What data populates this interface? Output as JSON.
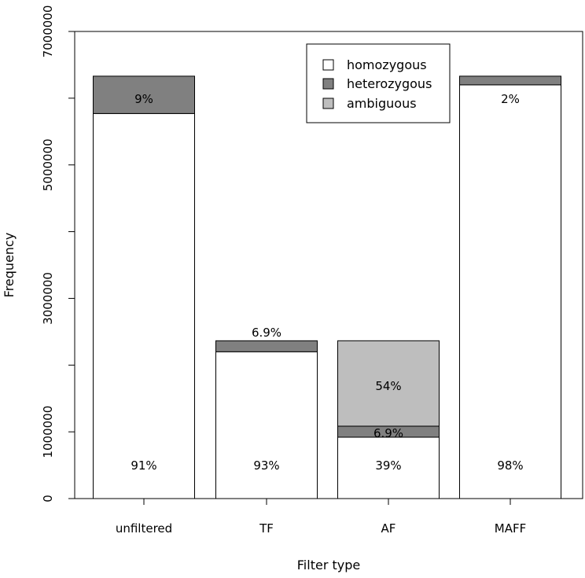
{
  "chart_data": {
    "type": "bar",
    "stacked": true,
    "xlabel": "Filter type",
    "ylabel": "Frequency",
    "ylim": [
      0,
      7000000
    ],
    "yticks": [
      0,
      1000000,
      3000000,
      5000000,
      7000000
    ],
    "ytick_labels": [
      "0",
      "1000000",
      "3000000",
      "5000000",
      "7000000"
    ],
    "categories": [
      "unfiltered",
      "TF",
      "AF",
      "MAFF"
    ],
    "series": [
      {
        "name": "homozygous",
        "color": "#ffffff",
        "values": [
          5770000,
          2200000,
          920000,
          6200000
        ],
        "labels": [
          "91%",
          "93%",
          "39%",
          "98%"
        ]
      },
      {
        "name": "heterozygous",
        "color": "#808080",
        "values": [
          560000,
          165000,
          165000,
          130000
        ],
        "labels": [
          "9%",
          "6.9%",
          "6.9%",
          "2%"
        ]
      },
      {
        "name": "ambiguous",
        "color": "#bebebe",
        "values": [
          0,
          0,
          1280000,
          0
        ],
        "labels": [
          "",
          "",
          "54%",
          ""
        ]
      }
    ],
    "legend": {
      "position": "top-right",
      "entries": [
        "homozygous",
        "heterozygous",
        "ambiguous"
      ]
    },
    "grid": false
  }
}
